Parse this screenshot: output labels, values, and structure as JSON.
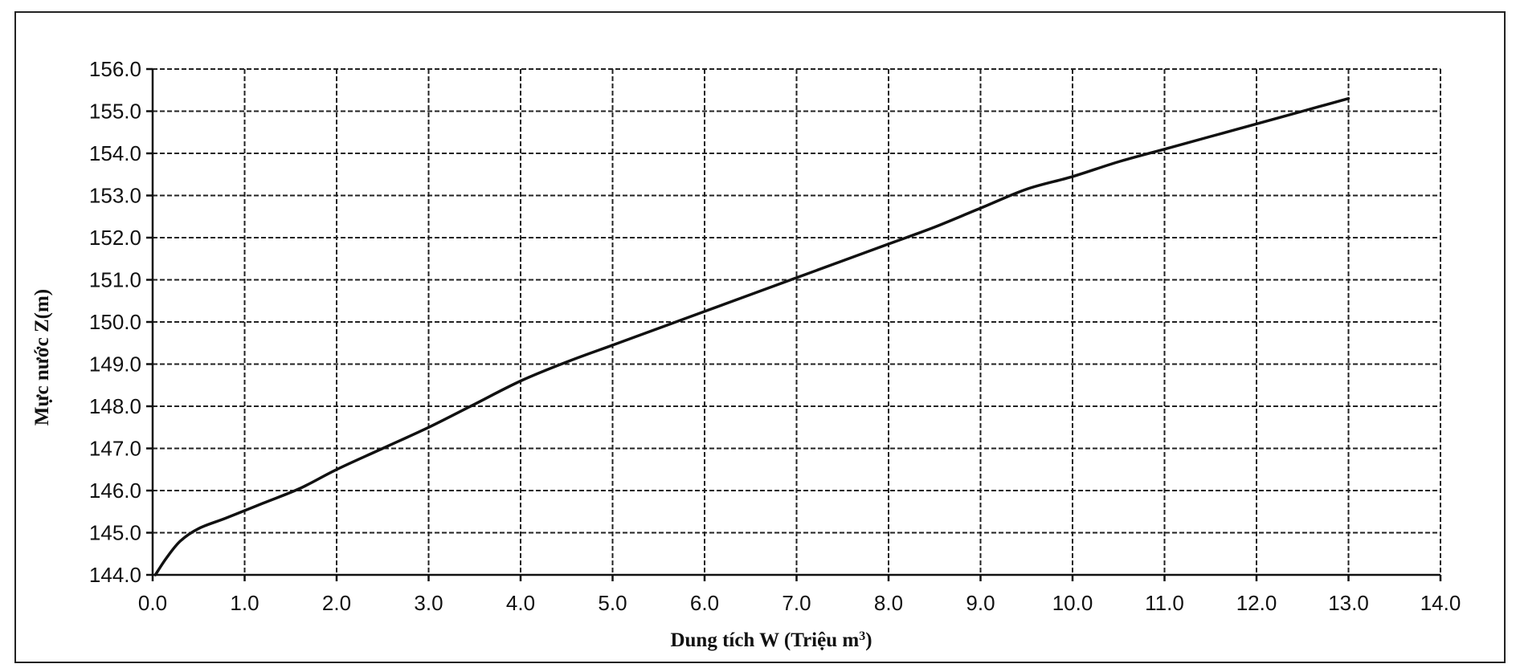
{
  "chart_data": {
    "type": "line",
    "xlabel": "Dung tích W (Triệu m",
    "xlabel_sup": "3",
    "xlabel_end": ")",
    "ylabel": "Mực nước Z(m)",
    "xlim": [
      0,
      14
    ],
    "ylim": [
      144,
      156
    ],
    "x_ticks": [
      "0.0",
      "1.0",
      "2.0",
      "3.0",
      "4.0",
      "5.0",
      "6.0",
      "7.0",
      "8.0",
      "9.0",
      "10.0",
      "11.0",
      "12.0",
      "13.0",
      "14.0"
    ],
    "y_ticks": [
      "144.0",
      "145.0",
      "146.0",
      "147.0",
      "148.0",
      "149.0",
      "150.0",
      "151.0",
      "152.0",
      "153.0",
      "154.0",
      "155.0",
      "156.0"
    ],
    "grid": true,
    "series": [
      {
        "x": [
          0.03,
          0.15,
          0.3,
          0.5,
          0.8,
          1.2,
          1.6,
          2.0,
          2.5,
          3.0,
          3.5,
          4.0,
          4.5,
          5.0,
          5.5,
          6.0,
          6.5,
          7.0,
          7.5,
          8.0,
          8.5,
          9.0,
          9.5,
          10.0,
          10.5,
          11.0,
          11.5,
          12.0,
          12.5,
          13.0
        ],
        "y": [
          144.0,
          144.4,
          144.8,
          145.1,
          145.35,
          145.7,
          146.05,
          146.5,
          147.0,
          147.5,
          148.05,
          148.6,
          149.05,
          149.45,
          149.85,
          150.25,
          150.65,
          151.05,
          151.45,
          151.85,
          152.25,
          152.7,
          153.15,
          153.45,
          153.8,
          154.1,
          154.4,
          154.7,
          155.0,
          155.3
        ]
      }
    ]
  }
}
